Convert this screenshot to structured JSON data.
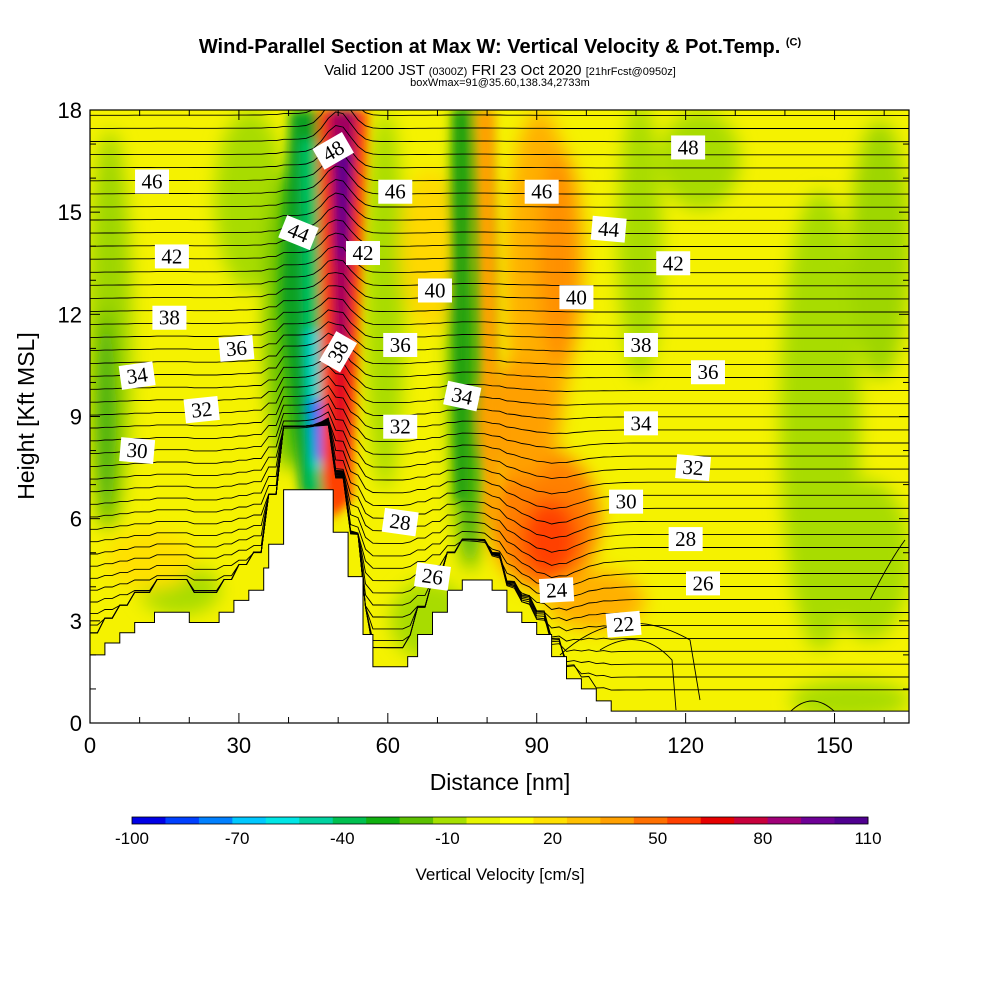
{
  "header": {
    "title": "Wind-Parallel Section at Max W: Vertical Velocity & Pot.Temp.",
    "title_mark": "(C)",
    "valid_prefix": "Valid 1200 JST",
    "valid_utc": "(0300Z)",
    "valid_date": "FRI 23 Oct 2020",
    "forecast": "[21hrFcst@0950z]",
    "box_info": "boxWmax=91@35.60,138.34,2733m"
  },
  "chart_data": {
    "type": "heatmap",
    "title": "Wind-Parallel Section at Max W: Vertical Velocity & Pot.Temp.",
    "xlabel": "Distance [nm]",
    "ylabel": "Height [Kft MSL]",
    "xlim": [
      0,
      165
    ],
    "ylim": [
      0,
      18
    ],
    "xticks": [
      "0",
      "30",
      "60",
      "90",
      "120",
      "150"
    ],
    "yticks": [
      "0",
      "3",
      "6",
      "9",
      "12",
      "15",
      "18"
    ],
    "colorbar": {
      "label": "Vertical Velocity [cm/s]",
      "tick_labels": [
        "-100",
        "-70",
        "-40",
        "-10",
        "20",
        "50",
        "80",
        "110"
      ],
      "colors": [
        "#0000e6",
        "#0040ff",
        "#0080ff",
        "#00c8ff",
        "#00e6e6",
        "#00d2a0",
        "#00c050",
        "#10b010",
        "#5cc000",
        "#a6e000",
        "#e6f500",
        "#ffff00",
        "#ffe000",
        "#ffc000",
        "#ffa000",
        "#ff7000",
        "#ff4000",
        "#e60000",
        "#c8003c",
        "#a00078",
        "#6e0096",
        "#500090"
      ]
    },
    "contour_labels": [
      {
        "text": "46",
        "x": 12.5,
        "y": 15.9,
        "angle": 0
      },
      {
        "text": "42",
        "x": 16.5,
        "y": 13.7,
        "angle": 0
      },
      {
        "text": "38",
        "x": 16.0,
        "y": 11.9,
        "angle": 0
      },
      {
        "text": "36",
        "x": 29.5,
        "y": 11.0,
        "angle": -5
      },
      {
        "text": "34",
        "x": 9.5,
        "y": 10.2,
        "angle": -8
      },
      {
        "text": "32",
        "x": 22.5,
        "y": 9.2,
        "angle": -6
      },
      {
        "text": "30",
        "x": 9.5,
        "y": 8.0,
        "angle": 5
      },
      {
        "text": "48",
        "x": 49.0,
        "y": 16.8,
        "angle": -30
      },
      {
        "text": "44",
        "x": 42.0,
        "y": 14.4,
        "angle": 22
      },
      {
        "text": "42",
        "x": 55.0,
        "y": 13.8,
        "angle": 0
      },
      {
        "text": "38",
        "x": 50.0,
        "y": 10.9,
        "angle": -60
      },
      {
        "text": "46",
        "x": 61.5,
        "y": 15.6,
        "angle": 0
      },
      {
        "text": "40",
        "x": 69.5,
        "y": 12.7,
        "angle": 0
      },
      {
        "text": "36",
        "x": 62.5,
        "y": 11.1,
        "angle": 0
      },
      {
        "text": "34",
        "x": 75.0,
        "y": 9.6,
        "angle": 12
      },
      {
        "text": "32",
        "x": 62.5,
        "y": 8.7,
        "angle": 0
      },
      {
        "text": "28",
        "x": 62.5,
        "y": 5.9,
        "angle": 8
      },
      {
        "text": "26",
        "x": 69.0,
        "y": 4.3,
        "angle": 8
      },
      {
        "text": "46",
        "x": 91.0,
        "y": 15.6,
        "angle": 0
      },
      {
        "text": "40",
        "x": 98.0,
        "y": 12.5,
        "angle": 0
      },
      {
        "text": "24",
        "x": 94.0,
        "y": 3.9,
        "angle": -3
      },
      {
        "text": "44",
        "x": 104.5,
        "y": 14.5,
        "angle": 5
      },
      {
        "text": "38",
        "x": 111.0,
        "y": 11.1,
        "angle": 0
      },
      {
        "text": "34",
        "x": 111.0,
        "y": 8.8,
        "angle": 0
      },
      {
        "text": "30",
        "x": 108.0,
        "y": 6.5,
        "angle": 0
      },
      {
        "text": "22",
        "x": 107.5,
        "y": 2.9,
        "angle": -5
      },
      {
        "text": "48",
        "x": 120.5,
        "y": 16.9,
        "angle": 0
      },
      {
        "text": "42",
        "x": 117.5,
        "y": 13.5,
        "angle": 0
      },
      {
        "text": "36",
        "x": 124.5,
        "y": 10.3,
        "angle": 0
      },
      {
        "text": "32",
        "x": 121.5,
        "y": 7.5,
        "angle": 5
      },
      {
        "text": "28",
        "x": 120.0,
        "y": 5.4,
        "angle": 0
      },
      {
        "text": "26",
        "x": 123.5,
        "y": 4.1,
        "angle": 0
      }
    ],
    "terrain_profile": [
      [
        0,
        2.0
      ],
      [
        3,
        2.0
      ],
      [
        3,
        2.35
      ],
      [
        6,
        2.35
      ],
      [
        6,
        2.65
      ],
      [
        9,
        2.65
      ],
      [
        9,
        2.95
      ],
      [
        13,
        2.95
      ],
      [
        13,
        3.25
      ],
      [
        20,
        3.25
      ],
      [
        20,
        2.95
      ],
      [
        26,
        2.95
      ],
      [
        26,
        3.25
      ],
      [
        29,
        3.25
      ],
      [
        29,
        3.6
      ],
      [
        32,
        3.6
      ],
      [
        32,
        3.9
      ],
      [
        35,
        3.9
      ],
      [
        35,
        4.55
      ],
      [
        36,
        4.55
      ],
      [
        36,
        5.25
      ],
      [
        39,
        5.25
      ],
      [
        39,
        6.85
      ],
      [
        49,
        6.85
      ],
      [
        49,
        5.6
      ],
      [
        52,
        5.6
      ],
      [
        52,
        4.3
      ],
      [
        55,
        4.3
      ],
      [
        55,
        2.6
      ],
      [
        57,
        2.6
      ],
      [
        57,
        1.65
      ],
      [
        64,
        1.65
      ],
      [
        64,
        1.95
      ],
      [
        66,
        1.95
      ],
      [
        66,
        2.6
      ],
      [
        69,
        2.6
      ],
      [
        69,
        3.25
      ],
      [
        72,
        3.25
      ],
      [
        72,
        3.9
      ],
      [
        75,
        3.9
      ],
      [
        75,
        4.2
      ],
      [
        81,
        4.2
      ],
      [
        81,
        3.9
      ],
      [
        84,
        3.9
      ],
      [
        84,
        3.25
      ],
      [
        87,
        3.25
      ],
      [
        87,
        2.95
      ],
      [
        90,
        2.95
      ],
      [
        90,
        2.6
      ],
      [
        93,
        2.6
      ],
      [
        93,
        1.95
      ],
      [
        96,
        1.95
      ],
      [
        96,
        1.3
      ],
      [
        99,
        1.3
      ],
      [
        99,
        1.0
      ],
      [
        102,
        1.0
      ],
      [
        102,
        0.65
      ],
      [
        105,
        0.65
      ],
      [
        105,
        0.35
      ],
      [
        165,
        0.35
      ]
    ],
    "grid": false
  }
}
